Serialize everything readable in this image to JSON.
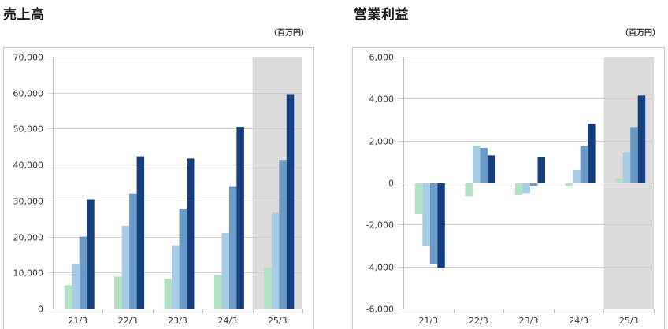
{
  "chart_data": [
    {
      "type": "bar",
      "title": "売上高",
      "unit": "（百万円）",
      "categories": [
        "21/3",
        "22/3",
        "23/3",
        "24/3",
        "25/3"
      ],
      "yticks": [
        "70,000",
        "60,000",
        "50,000",
        "40,000",
        "30,000",
        "20,000",
        "10,000",
        "0"
      ],
      "ylim": [
        0,
        70000
      ],
      "highlight_category": "25/3",
      "grid": true,
      "series": [
        {
          "values": [
            6500,
            8900,
            8300,
            9300,
            11500
          ]
        },
        {
          "values": [
            12300,
            23000,
            17600,
            21000,
            26800
          ]
        },
        {
          "values": [
            20000,
            32000,
            27800,
            34000,
            41300
          ]
        },
        {
          "values": [
            30300,
            42300,
            41700,
            50500,
            59400
          ]
        }
      ]
    },
    {
      "type": "bar",
      "title": "営業利益",
      "unit": "（百万円）",
      "categories": [
        "21/3",
        "22/3",
        "23/3",
        "24/3",
        "25/3"
      ],
      "yticks": [
        "6,000",
        "4,000",
        "2,000",
        "0",
        "-2,000",
        "-4,000",
        "-6,000"
      ],
      "ylim": [
        -6000,
        6000
      ],
      "highlight_category": "25/3",
      "grid": true,
      "series": [
        {
          "values": [
            -1500,
            -650,
            -600,
            -150,
            200
          ]
        },
        {
          "values": [
            -3000,
            1750,
            -500,
            600,
            1450
          ]
        },
        {
          "values": [
            -3900,
            1650,
            -150,
            1750,
            2650
          ]
        },
        {
          "values": [
            -4050,
            1300,
            1200,
            2800,
            4150
          ]
        }
      ]
    }
  ],
  "colors": {
    "series": [
      "#b2e2c4",
      "#a6cde5",
      "#6a9bc8",
      "#153e7d"
    ],
    "highlight": "#dcdcdc",
    "grid": "#d0d0d0",
    "frame": "#c8c8c8"
  }
}
